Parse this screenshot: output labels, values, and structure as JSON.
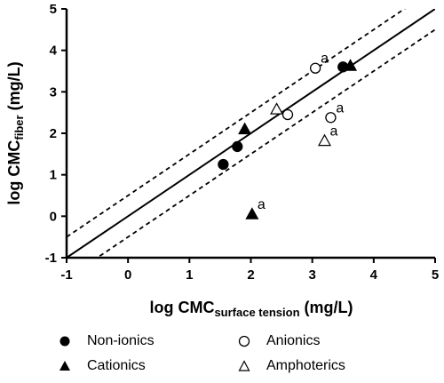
{
  "chart_data": {
    "type": "scatter",
    "xlabel_main": "log CMC",
    "xlabel_sub": "surface tension",
    "xlabel_unit": " (mg/L)",
    "ylabel_main": "log CMC",
    "ylabel_sub": "fiber",
    "ylabel_unit": " (mg/L)",
    "xlim": [
      -1,
      5
    ],
    "ylim": [
      -1,
      5
    ],
    "xticks": [
      "-1",
      "0",
      "1",
      "2",
      "3",
      "4",
      "5"
    ],
    "yticks": [
      "-1",
      "0",
      "1",
      "2",
      "3",
      "4",
      "5"
    ],
    "series": [
      {
        "name": "Non-ionics",
        "marker": "circle",
        "filled": true,
        "points": [
          [
            1.55,
            1.25
          ],
          [
            1.78,
            1.68
          ],
          [
            3.5,
            3.6
          ]
        ],
        "labels": [
          "",
          "",
          ""
        ]
      },
      {
        "name": "Anionics",
        "marker": "circle",
        "filled": false,
        "points": [
          [
            3.05,
            3.57
          ],
          [
            2.6,
            2.45
          ],
          [
            3.3,
            2.38
          ]
        ],
        "labels": [
          "a",
          "",
          "a"
        ]
      },
      {
        "name": "Cationics",
        "marker": "triangle",
        "filled": true,
        "points": [
          [
            1.9,
            2.1
          ],
          [
            3.62,
            3.63
          ],
          [
            2.02,
            0.05
          ]
        ],
        "labels": [
          "",
          "",
          "a"
        ]
      },
      {
        "name": "Amphoterics",
        "marker": "triangle",
        "filled": false,
        "points": [
          [
            2.42,
            2.58
          ],
          [
            3.2,
            1.82
          ]
        ],
        "labels": [
          "",
          "a"
        ]
      }
    ],
    "lines": [
      {
        "style": "solid",
        "x": [
          -1,
          5
        ],
        "y": [
          -1,
          5
        ]
      },
      {
        "style": "dashed",
        "x": [
          -1,
          5
        ],
        "y": [
          -0.5,
          5.5
        ]
      },
      {
        "style": "dashed",
        "x": [
          -1,
          5
        ],
        "y": [
          -1.5,
          4.5
        ]
      }
    ],
    "grid": false,
    "legend_position": "bottom"
  }
}
